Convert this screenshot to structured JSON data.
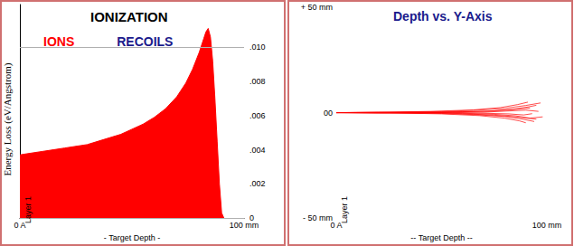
{
  "chart_data": [
    {
      "type": "area",
      "title": "IONIZATION",
      "x_label": "- Target Depth -",
      "y_label": "Energy Loss (eV/Angstrom)",
      "annotations": [
        "Layer 1"
      ],
      "x": [
        0,
        5,
        10,
        15,
        20,
        25,
        30,
        35,
        40,
        45,
        50,
        55,
        60,
        65,
        70,
        74,
        77,
        80,
        82,
        83,
        84,
        85,
        86,
        87,
        88,
        89,
        90,
        91
      ],
      "series": [
        {
          "name": "IONS",
          "color": "#ff0000",
          "values": [
            0.0037,
            0.0038,
            0.0039,
            0.004,
            0.0041,
            0.0042,
            0.0043,
            0.0045,
            0.0047,
            0.0049,
            0.0052,
            0.0055,
            0.0059,
            0.0064,
            0.0071,
            0.0079,
            0.0087,
            0.0097,
            0.0105,
            0.0109,
            0.0111,
            0.0106,
            0.0092,
            0.007,
            0.0045,
            0.002,
            0.0003,
            0
          ]
        },
        {
          "name": "RECOILS",
          "color": "#1a1a8c",
          "values": [
            null,
            null,
            null,
            null,
            null,
            null,
            null,
            null,
            null,
            null,
            null,
            null,
            null,
            null,
            null,
            null,
            null,
            null,
            null,
            null,
            null,
            null,
            null,
            null,
            null,
            null,
            null,
            null
          ]
        }
      ],
      "legend": "upper left",
      "grid": true,
      "xlim": [
        0,
        100
      ],
      "xticks": [
        {
          "value": 0,
          "label": "0 A"
        },
        {
          "value": 100,
          "label": "100 mm"
        }
      ],
      "ylim": [
        0,
        0.0125
      ],
      "yticks": [
        0,
        {
          "value": 0.002,
          "label": ".002"
        },
        {
          "value": 0.004,
          "label": ".004"
        },
        {
          "value": 0.006,
          "label": ".006"
        },
        {
          "value": 0.008,
          "label": ".008"
        },
        {
          "value": 0.01,
          "label": ".010"
        }
      ]
    },
    {
      "type": "line",
      "title": "Depth vs. Y-Axis",
      "x_label": "-- Target Depth --",
      "annotations": [
        "Layer 1"
      ],
      "color": "#ff0000",
      "grid": false,
      "series": [
        {
          "x": [
            0,
            20,
            40,
            60,
            75,
            85,
            92
          ],
          "values": [
            0,
            0.1,
            -0.2,
            0.4,
            0.9,
            1.6,
            2.2
          ]
        },
        {
          "x": [
            0,
            20,
            40,
            60,
            75,
            85,
            95
          ],
          "values": [
            0,
            -0.1,
            0.2,
            -0.5,
            -1.2,
            -2.0,
            -3.1
          ]
        },
        {
          "x": [
            0,
            25,
            50,
            65,
            80,
            90,
            97
          ],
          "values": [
            0,
            0.2,
            0.5,
            1.1,
            2.0,
            3.4,
            4.6
          ]
        },
        {
          "x": [
            0,
            25,
            50,
            65,
            80,
            88,
            94
          ],
          "values": [
            0,
            -0.2,
            -0.4,
            -0.9,
            -1.8,
            -3.0,
            -4.2
          ]
        },
        {
          "x": [
            0,
            30,
            55,
            70,
            82,
            90,
            96
          ],
          "values": [
            0,
            0.1,
            0.3,
            0.2,
            0.8,
            1.2,
            0.6
          ]
        },
        {
          "x": [
            0,
            30,
            55,
            70,
            82,
            89,
            93
          ],
          "values": [
            0,
            -0.1,
            0.1,
            -0.3,
            -0.6,
            -1.1,
            -0.5
          ]
        },
        {
          "x": [
            0,
            20,
            45,
            65,
            78,
            86,
            91
          ],
          "values": [
            0,
            0.2,
            0.6,
            1.3,
            2.4,
            3.8,
            5.0
          ]
        },
        {
          "x": [
            0,
            35,
            60,
            75,
            85,
            92,
            98
          ],
          "values": [
            0,
            0,
            -0.3,
            -0.8,
            -1.5,
            -2.6,
            -2.0
          ]
        },
        {
          "x": [
            0,
            40,
            60,
            72,
            84,
            91,
            95
          ],
          "values": [
            0,
            0.1,
            0.4,
            0.6,
            1.6,
            2.7,
            3.5
          ]
        },
        {
          "x": [
            0,
            30,
            50,
            68,
            80,
            87,
            90
          ],
          "values": [
            0,
            -0.2,
            -0.6,
            -1.4,
            -2.6,
            -3.9,
            -4.8
          ]
        }
      ],
      "xlim": [
        0,
        100
      ],
      "xticks": [
        {
          "value": 0,
          "label": "0 A"
        },
        {
          "value": 100,
          "label": "100 mm"
        }
      ],
      "ylim": [
        -50,
        50
      ],
      "yticks": [
        {
          "value": -50,
          "label": "- 50 mm"
        },
        {
          "value": 0,
          "label": "00"
        },
        {
          "value": 50,
          "label": "+ 50 mm"
        }
      ]
    }
  ]
}
